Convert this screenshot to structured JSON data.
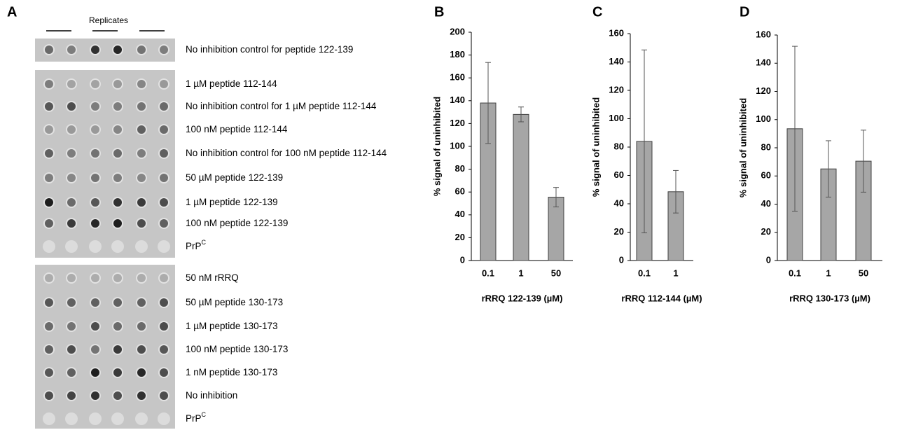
{
  "panel_a": {
    "label": "A",
    "header": "Replicates",
    "blots": [
      {
        "rows": [
          {
            "label": "No inhibition control for peptide 122-139"
          }
        ]
      },
      {
        "rows": [
          {
            "label": "1 µM peptide 112-144"
          },
          {
            "label": "No inhibition control for 1 µM peptide 112-144"
          },
          {
            "label": "100 nM peptide 112-144"
          },
          {
            "label": "No inhibition control for 100 nM peptide 112-144"
          },
          {
            "label": "50 µM peptide 122-139"
          },
          {
            "label": "1 µM peptide 122-139"
          },
          {
            "label": "100 nM peptide 122-139"
          },
          {
            "label": "PrP",
            "superscript": "C"
          }
        ]
      },
      {
        "rows": [
          {
            "label": "50 nM rRRQ"
          },
          {
            "label": "50 µM peptide 130-173"
          },
          {
            "label": "1 µM peptide 130-173"
          },
          {
            "label": "100 nM peptide 130-173"
          },
          {
            "label": "1 nM  peptide 130-173"
          },
          {
            "label": "No inhibition"
          },
          {
            "label": "PrP",
            "superscript": "C"
          }
        ]
      }
    ]
  },
  "chart_data": [
    {
      "type": "bar",
      "panel": "B",
      "categories": [
        "0.1",
        "1",
        "50"
      ],
      "values": [
        138,
        128,
        55.5
      ],
      "errors": [
        35.5,
        6.5,
        8.5
      ],
      "color": "#a6a6a6",
      "xlabel": "rRRQ 122-139 (µM)",
      "ylabel": "% signal of uninhibited",
      "ylim": [
        0,
        200
      ],
      "yticks": [
        0,
        20,
        40,
        60,
        80,
        100,
        120,
        140,
        160,
        180,
        200
      ]
    },
    {
      "type": "bar",
      "panel": "C",
      "categories": [
        "0.1",
        "1"
      ],
      "values": [
        84,
        48.5
      ],
      "errors": [
        64.5,
        15
      ],
      "color": "#a6a6a6",
      "xlabel": "rRRQ 112-144 (µM)",
      "ylabel": "% signal of uninhibited",
      "ylim": [
        0,
        160
      ],
      "yticks": [
        0,
        20,
        40,
        60,
        80,
        100,
        120,
        140,
        160
      ]
    },
    {
      "type": "bar",
      "panel": "D",
      "categories": [
        "0.1",
        "1",
        "50"
      ],
      "values": [
        93.5,
        65,
        70.5
      ],
      "errors": [
        58.5,
        20,
        22
      ],
      "color": "#a6a6a6",
      "xlabel": "rRRQ 130-173 (µM)",
      "ylabel": "% signal of uninhibited",
      "ylim": [
        0,
        160
      ],
      "yticks": [
        0,
        20,
        40,
        60,
        80,
        100,
        120,
        140,
        160
      ]
    }
  ]
}
